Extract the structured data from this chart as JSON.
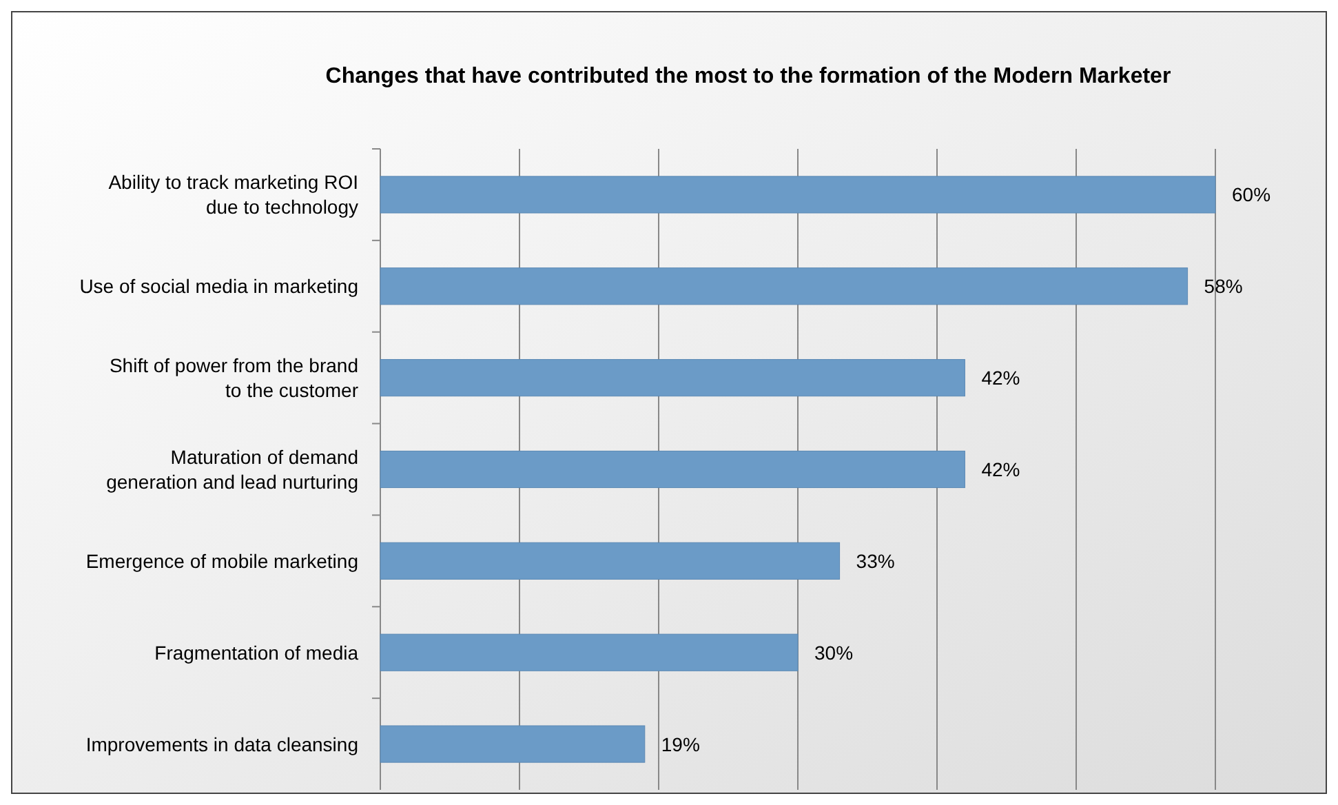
{
  "chart_data": {
    "type": "bar",
    "orientation": "horizontal",
    "title": "Changes that have contributed the most to the formation of the Modern Marketer",
    "categories": [
      "Ability to track marketing ROI\ndue to technology",
      "Use of social media in marketing",
      "Shift of power from the brand\nto the customer",
      "Maturation of demand\ngeneration and lead nurturing",
      "Emergence of mobile marketing",
      "Fragmentation of media",
      "Improvements in data cleansing"
    ],
    "values": [
      60,
      58,
      42,
      42,
      33,
      30,
      19
    ],
    "value_labels": [
      "60%",
      "58%",
      "42%",
      "42%",
      "33%",
      "30%",
      "19%"
    ],
    "color": "#6b9bc7",
    "xlim": [
      0,
      60
    ],
    "xticks": [
      {
        "value": 0,
        "label": null
      },
      {
        "value": 10,
        "label": null
      },
      {
        "value": 20,
        "label": null
      },
      {
        "value": 30,
        "label": null
      },
      {
        "value": 40,
        "label": null
      },
      {
        "value": 50,
        "label": null
      },
      {
        "value": 60,
        "label": null
      }
    ],
    "grid": "x",
    "tick_labels": "y"
  }
}
